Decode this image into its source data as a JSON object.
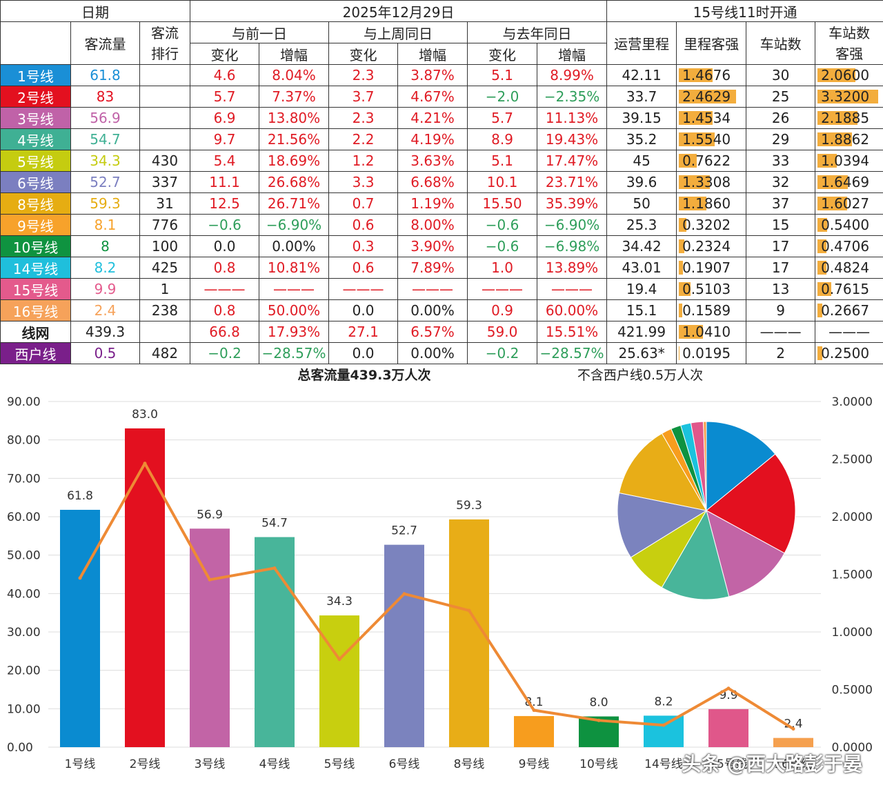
{
  "header": {
    "date_label": "日期",
    "date_value": "2025年12月29日",
    "note": "15号线11时开通",
    "col_flow": "客流量",
    "col_rank": "客流\n排行",
    "col_prev_day": "与前一日",
    "col_prev_week": "与上周同日",
    "col_prev_year": "与去年同日",
    "col_change": "变化",
    "col_rate": "增幅",
    "col_mileage": "运营里程",
    "col_mileage_intensity": "里程客强",
    "col_stations": "车站数",
    "col_station_intensity": "车站数\n客强"
  },
  "rows": [
    {
      "line": "1号线",
      "color": "#1a8fd6",
      "flow": "61.8",
      "flow_color": "#1a8fd6",
      "rank": "",
      "d_chg": "4.6",
      "d_rate": "8.04%",
      "w_chg": "2.3",
      "w_rate": "3.87%",
      "y_chg": "5.1",
      "y_rate": "8.99%",
      "mileage": "42.11",
      "mi": "1.4676",
      "mi_val": 1.4676,
      "stations": "30",
      "si": "2.0600",
      "si_val": 2.06
    },
    {
      "line": "2号线",
      "color": "#e3101f",
      "flow": "83",
      "flow_color": "#e3101f",
      "rank": "",
      "d_chg": "5.7",
      "d_rate": "7.37%",
      "w_chg": "3.7",
      "w_rate": "4.67%",
      "y_chg": "−2.0",
      "y_rate": "−2.35%",
      "mileage": "33.7",
      "mi": "2.4629",
      "mi_val": 2.4629,
      "stations": "25",
      "si": "3.3200",
      "si_val": 3.32
    },
    {
      "line": "3号线",
      "color": "#c062a8",
      "flow": "56.9",
      "flow_color": "#c062a8",
      "rank": "",
      "d_chg": "6.9",
      "d_rate": "13.80%",
      "w_chg": "2.3",
      "w_rate": "4.21%",
      "y_chg": "5.7",
      "y_rate": "11.13%",
      "mileage": "39.15",
      "mi": "1.4534",
      "mi_val": 1.4534,
      "stations": "26",
      "si": "2.1885",
      "si_val": 2.1885
    },
    {
      "line": "4号线",
      "color": "#3fb094",
      "flow": "54.7",
      "flow_color": "#3fb094",
      "rank": "",
      "d_chg": "9.7",
      "d_rate": "21.56%",
      "w_chg": "2.2",
      "w_rate": "4.19%",
      "y_chg": "8.9",
      "y_rate": "19.43%",
      "mileage": "35.2",
      "mi": "1.5540",
      "mi_val": 1.554,
      "stations": "29",
      "si": "1.8862",
      "si_val": 1.8862
    },
    {
      "line": "5号线",
      "color": "#c5cc10",
      "flow": "34.3",
      "flow_color": "#c5cc10",
      "rank": "430",
      "d_chg": "5.4",
      "d_rate": "18.69%",
      "w_chg": "1.2",
      "w_rate": "3.63%",
      "y_chg": "5.1",
      "y_rate": "17.47%",
      "mileage": "45",
      "mi": "0.7622",
      "mi_val": 0.7622,
      "stations": "33",
      "si": "1.0394",
      "si_val": 1.0394
    },
    {
      "line": "6号线",
      "color": "#7b7fc0",
      "flow": "52.7",
      "flow_color": "#7b7fc0",
      "rank": "337",
      "d_chg": "11.1",
      "d_rate": "26.68%",
      "w_chg": "3.3",
      "w_rate": "6.68%",
      "y_chg": "10.1",
      "y_rate": "23.71%",
      "mileage": "39.6",
      "mi": "1.3308",
      "mi_val": 1.3308,
      "stations": "32",
      "si": "1.6469",
      "si_val": 1.6469
    },
    {
      "line": "8号线",
      "color": "#e6ad12",
      "flow": "59.3",
      "flow_color": "#e6ad12",
      "rank": "31",
      "d_chg": "12.5",
      "d_rate": "26.71%",
      "w_chg": "0.7",
      "w_rate": "1.19%",
      "y_chg": "15.50",
      "y_rate": "35.39%",
      "mileage": "50",
      "mi": "1.1860",
      "mi_val": 1.186,
      "stations": "37",
      "si": "1.6027",
      "si_val": 1.6027
    },
    {
      "line": "9号线",
      "color": "#f7a22b",
      "flow": "8.1",
      "flow_color": "#f7a22b",
      "rank": "776",
      "d_chg": "−0.6",
      "d_rate": "−6.90%",
      "w_chg": "0.6",
      "w_rate": "8.00%",
      "y_chg": "−0.6",
      "y_rate": "−6.90%",
      "mileage": "25.3",
      "mi": "0.3202",
      "mi_val": 0.3202,
      "stations": "15",
      "si": "0.5400",
      "si_val": 0.54
    },
    {
      "line": "10号线",
      "color": "#0f9340",
      "flow": "8",
      "flow_color": "#0f9340",
      "rank": "100",
      "d_chg": "0.0",
      "d_rate": "0.00%",
      "w_chg": "0.3",
      "w_rate": "3.90%",
      "y_chg": "−0.6",
      "y_rate": "−6.98%",
      "mileage": "34.42",
      "mi": "0.2324",
      "mi_val": 0.2324,
      "stations": "17",
      "si": "0.4706",
      "si_val": 0.4706
    },
    {
      "line": "14号线",
      "color": "#1fbfdc",
      "flow": "8.2",
      "flow_color": "#1fbfdc",
      "rank": "425",
      "d_chg": "0.8",
      "d_rate": "10.81%",
      "w_chg": "0.6",
      "w_rate": "7.89%",
      "y_chg": "1.0",
      "y_rate": "13.89%",
      "mileage": "43.01",
      "mi": "0.1907",
      "mi_val": 0.1907,
      "stations": "17",
      "si": "0.4824",
      "si_val": 0.4824
    },
    {
      "line": "15号线",
      "color": "#e45a8c",
      "flow": "9.9",
      "flow_color": "#e45a8c",
      "rank": "1",
      "d_chg": "———",
      "d_rate": "———",
      "w_chg": "———",
      "w_rate": "———",
      "y_chg": "———",
      "y_rate": "———",
      "mileage": "19.4",
      "mi": "0.5103",
      "mi_val": 0.5103,
      "stations": "13",
      "si": "0.7615",
      "si_val": 0.7615
    },
    {
      "line": "16号线",
      "color": "#f6a25a",
      "flow": "2.4",
      "flow_color": "#f6a25a",
      "rank": "238",
      "d_chg": "0.8",
      "d_rate": "50.00%",
      "w_chg": "0.0",
      "w_rate": "0.00%",
      "y_chg": "0.9",
      "y_rate": "60.00%",
      "mileage": "15.1",
      "mi": "0.1589",
      "mi_val": 0.1589,
      "stations": "9",
      "si": "0.2667",
      "si_val": 0.2667
    }
  ],
  "network_row": {
    "line": "线网",
    "flow": "439.3",
    "rank": "",
    "d_chg": "66.8",
    "d_rate": "17.93%",
    "w_chg": "27.1",
    "w_rate": "6.57%",
    "y_chg": "59.0",
    "y_rate": "15.51%",
    "mileage": "421.99",
    "mi": "1.0410",
    "mi_val": 1.041,
    "stations": "———",
    "si": "———"
  },
  "xihu_row": {
    "line": "西户线",
    "color": "#7a1f8a",
    "flow": "0.5",
    "flow_color": "#7a1f8a",
    "rank": "482",
    "d_chg": "−0.2",
    "d_rate": "−28.57%",
    "w_chg": "0.0",
    "w_rate": "0.00%",
    "y_chg": "−0.2",
    "y_rate": "−28.57%",
    "mileage": "25.63*",
    "mi": "0.0195",
    "mi_val": 0.0195,
    "stations": "2",
    "si": "0.2500",
    "si_val": 0.25
  },
  "chart_data": [
    {
      "type": "bar",
      "title": "总客流量439.3万人次",
      "subtitle": "不含西户线0.5万人次",
      "categories": [
        "1号线",
        "2号线",
        "3号线",
        "4号线",
        "5号线",
        "6号线",
        "8号线",
        "9号线",
        "10号线",
        "14号线",
        "15号线",
        "16号线"
      ],
      "series": [
        {
          "values": [
            61.8,
            83.0,
            56.9,
            54.7,
            34.3,
            52.7,
            59.3,
            8.1,
            8.0,
            8.2,
            9.9,
            2.4
          ]
        },
        {
          "type": "line",
          "axis": "right",
          "values": [
            1.4676,
            2.4629,
            1.4534,
            1.554,
            0.7622,
            1.3308,
            1.186,
            0.3202,
            0.2324,
            0.1907,
            0.5103,
            0.1589
          ]
        }
      ],
      "data_labels": [
        "61.8",
        "83.0",
        "56.9",
        "54.7",
        "34.3",
        "52.7",
        "59.3",
        "8.1",
        "8.0",
        "8.2",
        "9.9",
        "2.4"
      ],
      "ylim": [
        0,
        90
      ],
      "y_ticks": [
        "0.00",
        "10.00",
        "20.00",
        "30.00",
        "40.00",
        "50.00",
        "60.00",
        "70.00",
        "80.00",
        "90.00"
      ],
      "y2lim": [
        0,
        3
      ],
      "y2_ticks": [
        "0.0000",
        "0.5000",
        "1.0000",
        "1.5000",
        "2.0000",
        "2.5000",
        "3.0000"
      ],
      "bar_colors": [
        "#0a8bd0",
        "#e3101f",
        "#c264a6",
        "#48b59a",
        "#c8cf0f",
        "#7b83be",
        "#e8ad17",
        "#f79d1e",
        "#0e9240",
        "#1bc2de",
        "#e0578a",
        "#f5a04f"
      ],
      "line_color": "#ee8a35",
      "grid": true
    },
    {
      "type": "pie",
      "values": [
        61.8,
        83.0,
        56.9,
        54.7,
        34.3,
        52.7,
        59.3,
        8.1,
        8.0,
        8.2,
        9.9,
        2.4
      ],
      "colors": [
        "#0a8bd0",
        "#e3101f",
        "#c264a6",
        "#48b59a",
        "#c8cf0f",
        "#7b83be",
        "#e8ad17",
        "#f79d1e",
        "#0e9240",
        "#1bc2de",
        "#e0578a",
        "#f5a04f"
      ]
    }
  ],
  "watermark": "头条 @西大路彭于晏"
}
